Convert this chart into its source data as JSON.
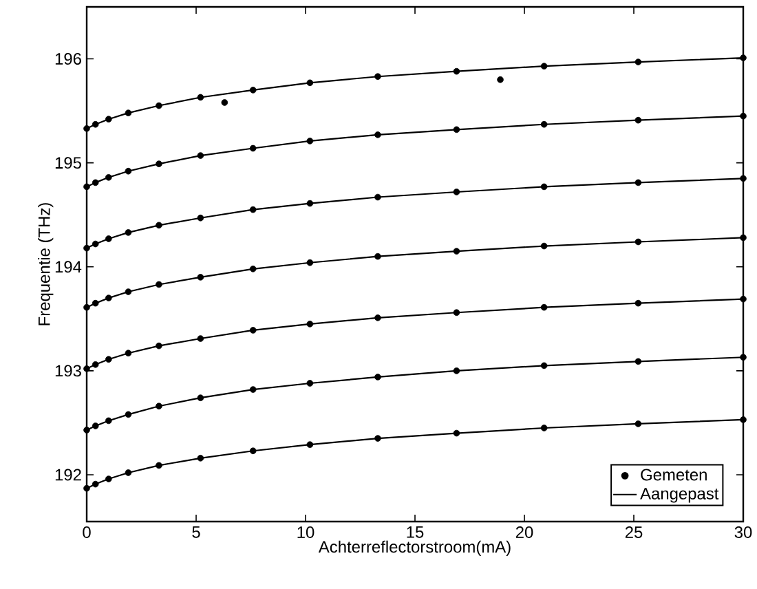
{
  "chart_data": {
    "type": "line",
    "xlabel": "Achterreflectorstroom(mA)",
    "ylabel": "Frequentie (THz)",
    "xlim": [
      0,
      30
    ],
    "ylim": [
      191.55,
      196.5
    ],
    "xticks": [
      0,
      5,
      10,
      15,
      20,
      25,
      30
    ],
    "yticks": [
      192,
      193,
      194,
      195,
      196
    ],
    "grid": false,
    "legend": "bottom right",
    "line_style": "solid",
    "x": [
      0,
      0.4,
      1,
      1.9,
      3.3,
      5.2,
      7.6,
      10.2,
      13.3,
      16.9,
      20.9,
      25.2,
      30
    ],
    "series": [
      {
        "name": "Aangepast",
        "marker": "none",
        "color": "#000000",
        "values": [
          195.33,
          195.37,
          195.42,
          195.48,
          195.55,
          195.63,
          195.7,
          195.77,
          195.83,
          195.88,
          195.93,
          195.97,
          196.01
        ]
      },
      {
        "marker": "none",
        "color": "#000000",
        "values": [
          194.77,
          194.81,
          194.86,
          194.92,
          194.99,
          195.07,
          195.14,
          195.21,
          195.27,
          195.32,
          195.37,
          195.41,
          195.45
        ]
      },
      {
        "marker": "none",
        "color": "#000000",
        "values": [
          194.18,
          194.22,
          194.27,
          194.33,
          194.4,
          194.47,
          194.55,
          194.61,
          194.67,
          194.72,
          194.77,
          194.81,
          194.85
        ]
      },
      {
        "marker": "none",
        "color": "#000000",
        "values": [
          193.61,
          193.65,
          193.7,
          193.76,
          193.83,
          193.9,
          193.98,
          194.04,
          194.1,
          194.15,
          194.2,
          194.24,
          194.28
        ]
      },
      {
        "marker": "none",
        "color": "#000000",
        "values": [
          193.02,
          193.06,
          193.11,
          193.17,
          193.24,
          193.31,
          193.39,
          193.45,
          193.51,
          193.56,
          193.61,
          193.65,
          193.69
        ]
      },
      {
        "marker": "none",
        "color": "#000000",
        "values": [
          192.43,
          192.47,
          192.52,
          192.58,
          192.66,
          192.74,
          192.82,
          192.88,
          192.94,
          193.0,
          193.05,
          193.09,
          193.13
        ]
      },
      {
        "marker": "none",
        "color": "#000000",
        "values": [
          191.87,
          191.91,
          191.96,
          192.02,
          192.09,
          192.16,
          192.23,
          192.29,
          192.35,
          192.4,
          192.45,
          192.49,
          192.53
        ]
      },
      {
        "name": "Gemeten",
        "type": "scatter",
        "marker": "circle",
        "color": "#000000",
        "x": [
          0,
          0.4,
          1,
          1.9,
          3.3,
          5.2,
          7.6,
          10.2,
          13.3,
          16.9,
          20.9,
          25.2,
          30,
          6.3,
          18.9
        ],
        "values": [
          195.33,
          195.37,
          195.42,
          195.48,
          195.55,
          195.63,
          195.7,
          195.77,
          195.83,
          195.88,
          195.93,
          195.97,
          196.01,
          195.58,
          195.8
        ]
      },
      {
        "type": "scatter",
        "marker": "circle",
        "color": "#000000",
        "x": [
          0,
          0.4,
          1,
          1.9,
          3.3,
          5.2,
          7.6,
          10.2,
          13.3,
          16.9,
          20.9,
          25.2,
          30
        ],
        "values": [
          194.77,
          194.81,
          194.86,
          194.92,
          194.99,
          195.07,
          195.14,
          195.21,
          195.27,
          195.32,
          195.37,
          195.41,
          195.45
        ]
      },
      {
        "type": "scatter",
        "marker": "circle",
        "color": "#000000",
        "x": [
          0,
          0.4,
          1,
          1.9,
          3.3,
          5.2,
          7.6,
          10.2,
          13.3,
          16.9,
          20.9,
          25.2,
          30
        ],
        "values": [
          194.18,
          194.22,
          194.27,
          194.33,
          194.4,
          194.47,
          194.55,
          194.61,
          194.67,
          194.72,
          194.77,
          194.81,
          194.85
        ]
      },
      {
        "type": "scatter",
        "marker": "circle",
        "color": "#000000",
        "x": [
          0,
          0.4,
          1,
          1.9,
          3.3,
          5.2,
          7.6,
          10.2,
          13.3,
          16.9,
          20.9,
          25.2,
          30
        ],
        "values": [
          193.61,
          193.65,
          193.7,
          193.76,
          193.83,
          193.9,
          193.98,
          194.04,
          194.1,
          194.15,
          194.2,
          194.24,
          194.28
        ]
      },
      {
        "type": "scatter",
        "marker": "circle",
        "color": "#000000",
        "x": [
          0,
          0.4,
          1,
          1.9,
          3.3,
          5.2,
          7.6,
          10.2,
          13.3,
          16.9,
          20.9,
          25.2,
          30
        ],
        "values": [
          193.02,
          193.06,
          193.11,
          193.17,
          193.24,
          193.31,
          193.39,
          193.45,
          193.51,
          193.56,
          193.61,
          193.65,
          193.69
        ]
      },
      {
        "type": "scatter",
        "marker": "circle",
        "color": "#000000",
        "x": [
          0,
          0.4,
          1,
          1.9,
          3.3,
          5.2,
          7.6,
          10.2,
          13.3,
          16.9,
          20.9,
          25.2,
          30
        ],
        "values": [
          192.43,
          192.47,
          192.52,
          192.58,
          192.66,
          192.74,
          192.82,
          192.88,
          192.94,
          193.0,
          193.05,
          193.09,
          193.13
        ]
      },
      {
        "type": "scatter",
        "marker": "circle",
        "color": "#000000",
        "x": [
          0,
          0.4,
          1,
          1.9,
          3.3,
          5.2,
          7.6,
          10.2,
          13.3,
          16.9,
          20.9,
          25.2,
          30
        ],
        "values": [
          191.87,
          191.91,
          191.96,
          192.02,
          192.09,
          192.16,
          192.23,
          192.29,
          192.35,
          192.4,
          192.45,
          192.49,
          192.53
        ]
      }
    ]
  }
}
